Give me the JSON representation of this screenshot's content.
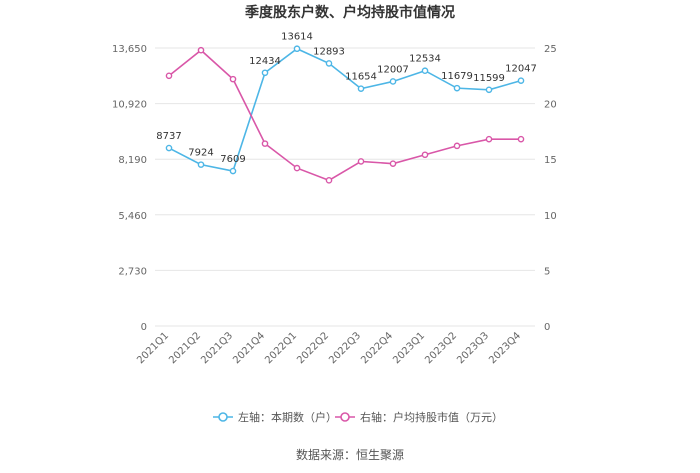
{
  "chart_data": {
    "type": "line",
    "title": "季度股东户数、户均持股市值情况",
    "categories": [
      "2021Q1",
      "2021Q2",
      "2021Q3",
      "2021Q4",
      "2022Q1",
      "2022Q2",
      "2022Q3",
      "2022Q4",
      "2023Q1",
      "2023Q2",
      "2023Q3",
      "2023Q4"
    ],
    "left_axis": {
      "min": 0,
      "max": 13650,
      "ticks": [
        0,
        2730,
        5460,
        8190,
        10920,
        13650
      ],
      "tick_labels": [
        "0",
        "2,730",
        "5,460",
        "8,190",
        "10,920",
        "13,650"
      ]
    },
    "right_axis": {
      "min": 0,
      "max": 25,
      "ticks": [
        0,
        5,
        10,
        15,
        20,
        25
      ],
      "tick_labels": [
        "0",
        "5",
        "10",
        "15",
        "20",
        "25"
      ]
    },
    "series": [
      {
        "name": "左轴：本期数（户）",
        "axis": "left",
        "color": "#4db6e6",
        "values": [
          8737,
          7924,
          7609,
          12434,
          13614,
          12893,
          11654,
          12007,
          12534,
          11679,
          11599,
          12047
        ],
        "labels": [
          "8737",
          "7924",
          "7609",
          "12434",
          "13614",
          "12893",
          "11654",
          "12007",
          "12534",
          "11679",
          "11599",
          "12047"
        ]
      },
      {
        "name": "右轴：户均持股市值（万元）",
        "axis": "right",
        "color": "#d957a8",
        "values": [
          22.5,
          24.8,
          22.2,
          16.4,
          14.2,
          13.1,
          14.8,
          14.6,
          15.4,
          16.2,
          16.8,
          16.8
        ]
      }
    ],
    "grid": true,
    "legend_position": "bottom"
  },
  "source": "数据来源：恒生聚源"
}
